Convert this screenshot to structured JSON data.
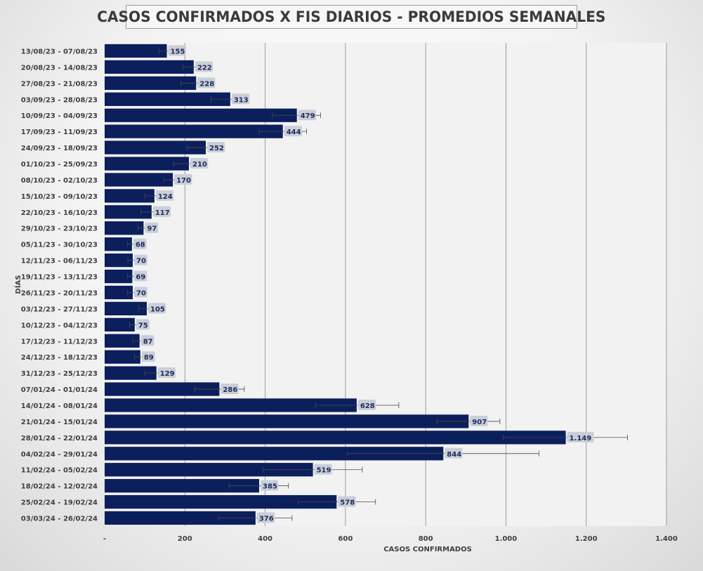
{
  "chart_data": {
    "type": "bar",
    "orientation": "horizontal",
    "title": "CASOS CONFIRMADOS X FIS DIARIOS - PROMEDIOS SEMANALES",
    "xlabel": "CASOS CONFIRMADOS",
    "ylabel": "DÍAS",
    "xlim": [
      0,
      1400
    ],
    "xticks": [
      0,
      200,
      400,
      600,
      800,
      1000,
      1200,
      1400
    ],
    "xtick_labels": [
      "-",
      "200",
      "400",
      "600",
      "800",
      "1.000",
      "1.200",
      "1.400"
    ],
    "grid": "vertical",
    "bar_color": "#0b1f5c",
    "plot_background": "#f2f2f2",
    "categories": [
      "13/08/23 - 07/08/23",
      "20/08/23 - 14/08/23",
      "27/08/23 - 21/08/23",
      "03/09/23 - 28/08/23",
      "10/09/23 - 04/09/23",
      "17/09/23 - 11/09/23",
      "24/09/23 - 18/09/23",
      "01/10/23 - 25/09/23",
      "08/10/23 - 02/10/23",
      "15/10/23 - 09/10/23",
      "22/10/23 - 16/10/23",
      "29/10/23 - 23/10/23",
      "05/11/23 - 30/10/23",
      "12/11/23 - 06/11/23",
      "19/11/23 - 13/11/23",
      "26/11/23 - 20/11/23",
      "03/12/23 - 27/11/23",
      "10/12/23 - 04/12/23",
      "17/12/23 - 11/12/23",
      "24/12/23 - 18/12/23",
      "31/12/23 - 25/12/23",
      "07/01/24 - 01/01/24",
      "14/01/24 - 08/01/24",
      "21/01/24 - 15/01/24",
      "28/01/24 - 22/01/24",
      "04/02/24 - 29/01/24",
      "11/02/24 - 05/02/24",
      "18/02/24 - 12/02/24",
      "25/02/24 - 19/02/24",
      "03/03/24 - 26/02/24"
    ],
    "values": [
      155,
      222,
      228,
      313,
      479,
      444,
      252,
      210,
      170,
      124,
      117,
      97,
      68,
      70,
      69,
      70,
      105,
      75,
      87,
      89,
      129,
      286,
      628,
      907,
      1149,
      844,
      519,
      385,
      578,
      376
    ],
    "labels": [
      "155",
      "222",
      "228",
      "313",
      "479",
      "444",
      "252",
      "210",
      "170",
      "124",
      "117",
      "97",
      "68",
      "70",
      "69",
      "70",
      "105",
      "75",
      "87",
      "89",
      "129",
      "286",
      "628",
      "907",
      "1.149",
      "844",
      "519",
      "385",
      "578",
      "376"
    ],
    "error_low": [
      135,
      195,
      190,
      265,
      418,
      385,
      205,
      172,
      148,
      100,
      90,
      83,
      57,
      58,
      57,
      57,
      85,
      62,
      70,
      74,
      100,
      225,
      525,
      828,
      993,
      605,
      395,
      310,
      482,
      285
    ],
    "error_high": [
      165,
      245,
      268,
      352,
      538,
      503,
      295,
      242,
      185,
      145,
      140,
      112,
      78,
      80,
      79,
      80,
      125,
      86,
      101,
      100,
      150,
      348,
      733,
      985,
      1303,
      1082,
      642,
      458,
      675,
      467
    ]
  }
}
